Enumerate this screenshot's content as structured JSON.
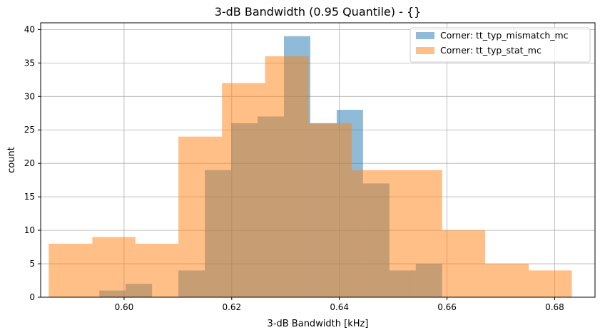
{
  "chart_data": {
    "type": "histogram",
    "title": "3-dB Bandwidth (0.95 Quantile) - {}",
    "xlabel": "3-dB Bandwidth [kHz]",
    "ylabel": "count",
    "xlim": [
      0.5845,
      0.6875
    ],
    "ylim": [
      0,
      41
    ],
    "xticks": [
      0.6,
      0.62,
      0.64,
      0.66,
      0.68
    ],
    "xtick_labels": [
      "0.60",
      "0.62",
      "0.64",
      "0.66",
      "0.68"
    ],
    "yticks": [
      0,
      5,
      10,
      15,
      20,
      25,
      30,
      35,
      40
    ],
    "ytick_labels": [
      "0",
      "5",
      "10",
      "15",
      "20",
      "25",
      "30",
      "35",
      "40"
    ],
    "grid": true,
    "legend_position": "top-right",
    "series": [
      {
        "name": "Corner: tt_typ_mismatch_mc",
        "color": "#1f77b4",
        "opacity": 0.5,
        "bins": [
          {
            "x0": 0.5954,
            "x1": 0.6003,
            "count": 1
          },
          {
            "x0": 0.6003,
            "x1": 0.6052,
            "count": 2
          },
          {
            "x0": 0.6052,
            "x1": 0.6101,
            "count": 0
          },
          {
            "x0": 0.6101,
            "x1": 0.615,
            "count": 4
          },
          {
            "x0": 0.615,
            "x1": 0.6199,
            "count": 19
          },
          {
            "x0": 0.6199,
            "x1": 0.6248,
            "count": 26
          },
          {
            "x0": 0.6248,
            "x1": 0.6297,
            "count": 27
          },
          {
            "x0": 0.6297,
            "x1": 0.6346,
            "count": 39
          },
          {
            "x0": 0.6346,
            "x1": 0.6395,
            "count": 26
          },
          {
            "x0": 0.6395,
            "x1": 0.6444,
            "count": 28
          },
          {
            "x0": 0.6444,
            "x1": 0.6493,
            "count": 17
          },
          {
            "x0": 0.6493,
            "x1": 0.6542,
            "count": 4
          },
          {
            "x0": 0.6542,
            "x1": 0.6591,
            "count": 5
          }
        ]
      },
      {
        "name": "Corner: tt_typ_stat_mc",
        "color": "#ff7f0e",
        "opacity": 0.5,
        "bins": [
          {
            "x0": 0.586,
            "x1": 0.5941,
            "count": 8
          },
          {
            "x0": 0.5941,
            "x1": 0.6021,
            "count": 9
          },
          {
            "x0": 0.6021,
            "x1": 0.6101,
            "count": 8
          },
          {
            "x0": 0.6101,
            "x1": 0.6182,
            "count": 24
          },
          {
            "x0": 0.6182,
            "x1": 0.6262,
            "count": 32
          },
          {
            "x0": 0.6262,
            "x1": 0.6343,
            "count": 36
          },
          {
            "x0": 0.6343,
            "x1": 0.6423,
            "count": 26
          },
          {
            "x0": 0.6423,
            "x1": 0.6511,
            "count": 19
          },
          {
            "x0": 0.6511,
            "x1": 0.6591,
            "count": 19
          },
          {
            "x0": 0.6591,
            "x1": 0.6671,
            "count": 10
          },
          {
            "x0": 0.6671,
            "x1": 0.6752,
            "count": 5
          },
          {
            "x0": 0.6752,
            "x1": 0.6832,
            "count": 4
          }
        ]
      }
    ]
  }
}
